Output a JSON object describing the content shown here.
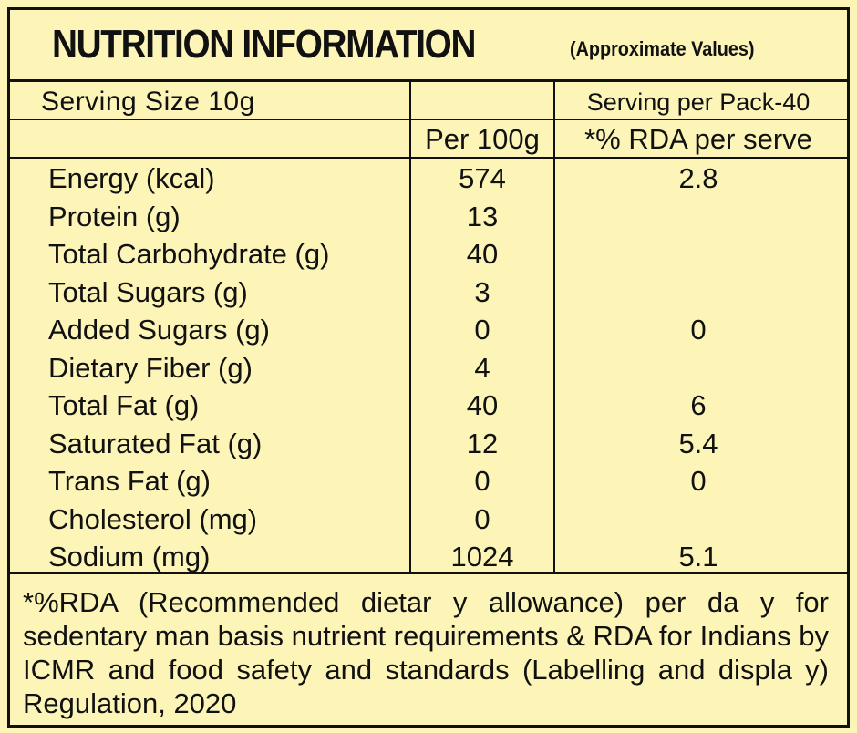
{
  "title": "NUTRITION INFORMATION",
  "subtitle": "(Approximate Values)",
  "header": {
    "serving_size": "Serving Size 10g",
    "serving_per_pack": "Serving per Pack-40",
    "per_100g": "Per 100g",
    "rda_per_serve": "*% RDA per serve"
  },
  "rows": [
    {
      "name": "Energy (kcal)",
      "per100": "574",
      "rda": "2.8"
    },
    {
      "name": "Protein (g)",
      "per100": "13",
      "rda": ""
    },
    {
      "name": "Total Carbohydrate (g)",
      "per100": "40",
      "rda": ""
    },
    {
      "name": "Total Sugars (g)",
      "per100": "3",
      "rda": ""
    },
    {
      "name": "Added Sugars (g)",
      "per100": "0",
      "rda": "0"
    },
    {
      "name": "Dietary Fiber (g)",
      "per100": "4",
      "rda": ""
    },
    {
      "name": "Total Fat (g)",
      "per100": "40",
      "rda": "6"
    },
    {
      "name": "Saturated Fat (g)",
      "per100": "12",
      "rda": "5.4"
    },
    {
      "name": "Trans Fat  (g)",
      "per100": "0",
      "rda": "0"
    },
    {
      "name": "Cholesterol (mg)",
      "per100": "0",
      "rda": ""
    },
    {
      "name": "Sodium (mg)",
      "per100": "1024",
      "rda": "5.1"
    }
  ],
  "footnote": "*%RDA (Recommended dietar y allowance) per da y for sedentary man basis  nutrient requirements & RDA for Indians by ICMR and food safety and standards (Labelling and displa y) Regulation, 2020"
}
